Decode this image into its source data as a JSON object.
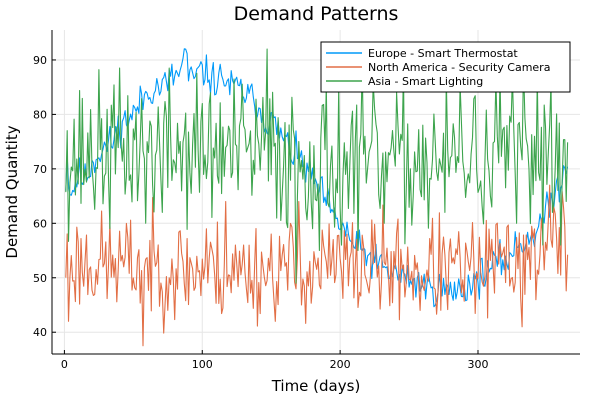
{
  "chart_data": {
    "type": "line",
    "title": "Demand Patterns",
    "xlabel": "Time (days)",
    "ylabel": "Demand Quantity",
    "xlim": [
      -9,
      374
    ],
    "ylim": [
      36,
      95.5
    ],
    "xticks": [
      0,
      100,
      200,
      300
    ],
    "yticks": [
      40,
      50,
      60,
      70,
      80,
      90
    ],
    "grid": true,
    "legend_position": "top-right",
    "days": 365,
    "series": [
      {
        "name": "Europe - Smart Thermostat",
        "color": "#009af9",
        "anchors": [
          [
            1,
            68
          ],
          [
            2,
            72
          ],
          [
            4,
            66
          ],
          [
            6,
            66
          ],
          [
            10,
            69
          ],
          [
            15,
            68
          ],
          [
            20,
            71
          ],
          [
            25,
            73
          ],
          [
            30,
            74
          ],
          [
            35,
            75
          ],
          [
            40,
            78
          ],
          [
            45,
            79
          ],
          [
            50,
            80
          ],
          [
            55,
            82
          ],
          [
            60,
            84
          ],
          [
            65,
            85
          ],
          [
            70,
            85
          ],
          [
            75,
            86
          ],
          [
            80,
            87
          ],
          [
            85,
            88
          ],
          [
            88,
            93
          ],
          [
            90,
            86
          ],
          [
            95,
            87
          ],
          [
            100,
            88
          ],
          [
            105,
            87
          ],
          [
            110,
            86
          ],
          [
            115,
            87
          ],
          [
            120,
            85
          ],
          [
            125,
            85
          ],
          [
            130,
            84
          ],
          [
            135,
            83
          ],
          [
            140,
            82
          ],
          [
            145,
            79
          ],
          [
            150,
            79
          ],
          [
            155,
            77
          ],
          [
            160,
            75
          ],
          [
            165,
            73
          ],
          [
            170,
            72
          ],
          [
            175,
            70
          ],
          [
            180,
            68
          ],
          [
            185,
            66
          ],
          [
            190,
            64
          ],
          [
            195,
            61
          ],
          [
            200,
            60
          ],
          [
            205,
            58
          ],
          [
            210,
            56
          ],
          [
            215,
            55
          ],
          [
            220,
            54
          ],
          [
            225,
            53
          ],
          [
            230,
            52
          ],
          [
            235,
            51
          ],
          [
            240,
            51
          ],
          [
            245,
            50
          ],
          [
            250,
            50
          ],
          [
            255,
            49
          ],
          [
            260,
            49
          ],
          [
            265,
            48
          ],
          [
            270,
            48
          ],
          [
            275,
            48
          ],
          [
            280,
            47
          ],
          [
            285,
            48
          ],
          [
            290,
            48
          ],
          [
            295,
            49
          ],
          [
            300,
            50
          ],
          [
            305,
            51
          ],
          [
            310,
            52
          ],
          [
            315,
            53
          ],
          [
            320,
            53
          ],
          [
            325,
            55
          ],
          [
            330,
            56
          ],
          [
            335,
            57
          ],
          [
            340,
            58
          ],
          [
            345,
            60
          ],
          [
            350,
            62
          ],
          [
            355,
            65
          ],
          [
            360,
            68
          ],
          [
            365,
            72
          ]
        ],
        "noise": 1.6,
        "seed": 11
      },
      {
        "name": "North America - Security Camera",
        "color": "#e26f46",
        "anchors": [
          [
            1,
            53
          ],
          [
            60,
            52
          ],
          [
            120,
            51
          ],
          [
            180,
            52
          ],
          [
            240,
            52
          ],
          [
            300,
            51
          ],
          [
            330,
            54
          ],
          [
            365,
            56
          ]
        ],
        "noise": 4.6,
        "spikes": [
          [
            3,
            42
          ],
          [
            57,
            37.5
          ],
          [
            103,
            59
          ],
          [
            117,
            64
          ],
          [
            170,
            64
          ],
          [
            172,
            45
          ],
          [
            258,
            44
          ],
          [
            332,
            41
          ],
          [
            352,
            67
          ],
          [
            355,
            63
          ],
          [
            362,
            63
          ]
        ],
        "seed": 23
      },
      {
        "name": "Asia - Smart Lighting",
        "color": "#3da44d",
        "anchors": [
          [
            1,
            72
          ],
          [
            60,
            74
          ],
          [
            120,
            73
          ],
          [
            180,
            72
          ],
          [
            240,
            71
          ],
          [
            300,
            72
          ],
          [
            365,
            74
          ]
        ],
        "noise": 6.8,
        "spikes": [
          [
            2,
            77
          ],
          [
            59,
            60
          ],
          [
            71,
            62
          ],
          [
            147,
            92
          ],
          [
            168,
            49
          ],
          [
            185,
            55
          ],
          [
            201,
            56
          ],
          [
            213,
            55
          ],
          [
            232,
            60
          ],
          [
            276,
            62
          ],
          [
            310,
            63
          ],
          [
            328,
            60
          ],
          [
            353,
            86
          ],
          [
            360,
            56
          ],
          [
            364,
            64
          ]
        ],
        "seed": 37
      }
    ]
  }
}
